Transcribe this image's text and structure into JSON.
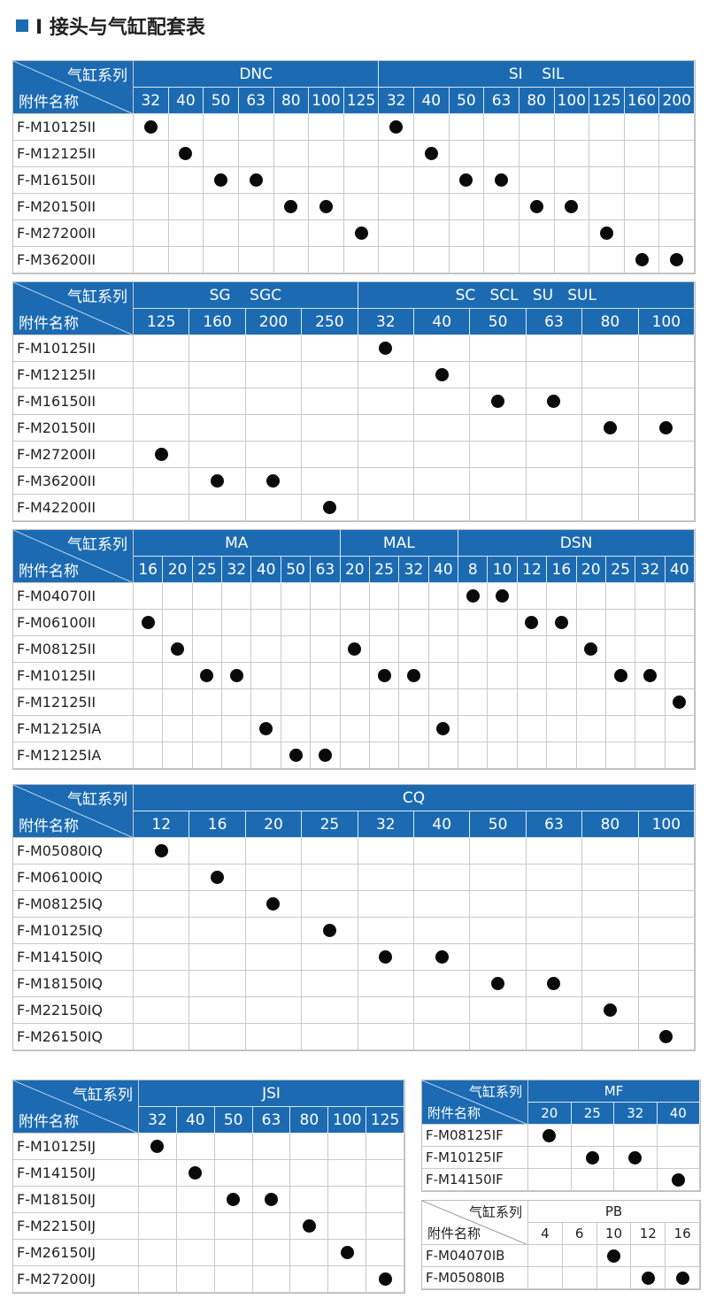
{
  "title": "I 接头与气缸配套表",
  "tables": [
    {
      "id": "t1",
      "header_top": "气缸系列",
      "header_bottom": "附件名称",
      "groups": [
        {
          "label": "DNC",
          "span": 7
        },
        {
          "label": "SI    SIL",
          "span": 9
        }
      ],
      "sizes": [
        "32",
        "40",
        "50",
        "63",
        "80",
        "100",
        "125",
        "32",
        "40",
        "50",
        "63",
        "80",
        "100",
        "125",
        "160",
        "200"
      ],
      "rows": [
        {
          "name": "F-M10125II",
          "dots": [
            0,
            7
          ]
        },
        {
          "name": "F-M12125II",
          "dots": [
            1,
            8
          ]
        },
        {
          "name": "F-M16150II",
          "dots": [
            2,
            3,
            9,
            10
          ]
        },
        {
          "name": "F-M20150II",
          "dots": [
            4,
            5,
            11,
            12
          ]
        },
        {
          "name": "F-M27200II",
          "dots": [
            6,
            13
          ]
        },
        {
          "name": "F-M36200II",
          "dots": [
            14,
            15
          ]
        }
      ]
    },
    {
      "id": "t2",
      "header_top": "气缸系列",
      "header_bottom": "附件名称",
      "groups": [
        {
          "label": "SG    SGC",
          "span": 4
        },
        {
          "label": "SC   SCL   SU   SUL",
          "span": 6
        }
      ],
      "sizes": [
        "125",
        "160",
        "200",
        "250",
        "32",
        "40",
        "50",
        "63",
        "80",
        "100"
      ],
      "rows": [
        {
          "name": "F-M10125II",
          "dots": [
            4
          ]
        },
        {
          "name": "F-M12125II",
          "dots": [
            5
          ]
        },
        {
          "name": "F-M16150II",
          "dots": [
            6,
            7
          ]
        },
        {
          "name": "F-M20150II",
          "dots": [
            8,
            9
          ]
        },
        {
          "name": "F-M27200II",
          "dots": [
            0
          ]
        },
        {
          "name": "F-M36200II",
          "dots": [
            1,
            2
          ]
        },
        {
          "name": "F-M42200II",
          "dots": [
            3
          ]
        }
      ]
    },
    {
      "id": "t3",
      "header_top": "气缸系列",
      "header_bottom": "附件名称",
      "groups": [
        {
          "label": "MA",
          "span": 7
        },
        {
          "label": "MAL",
          "span": 4
        },
        {
          "label": "DSN",
          "span": 8
        }
      ],
      "sizes": [
        "16",
        "20",
        "25",
        "32",
        "40",
        "50",
        "63",
        "20",
        "25",
        "32",
        "40",
        "8",
        "10",
        "12",
        "16",
        "20",
        "25",
        "32",
        "40"
      ],
      "rows": [
        {
          "name": "F-M04070II",
          "dots": [
            11,
            12
          ]
        },
        {
          "name": "F-M06100II",
          "dots": [
            0,
            13,
            14
          ]
        },
        {
          "name": "F-M08125II",
          "dots": [
            1,
            7,
            15
          ]
        },
        {
          "name": "F-M10125II",
          "dots": [
            2,
            3,
            8,
            9,
            16,
            17
          ]
        },
        {
          "name": "F-M12125II",
          "dots": [
            18
          ]
        },
        {
          "name": "F-M12125IA",
          "dots": [
            4,
            10
          ]
        },
        {
          "name": "F-M12125IA",
          "dots": [
            5,
            6
          ]
        }
      ]
    },
    {
      "id": "t4",
      "header_top": "气缸系列",
      "header_bottom": "附件名称",
      "groups": [
        {
          "label": "CQ",
          "span": 10
        }
      ],
      "sizes": [
        "12",
        "16",
        "20",
        "25",
        "32",
        "40",
        "50",
        "63",
        "80",
        "100"
      ],
      "rows": [
        {
          "name": "F-M05080IQ",
          "dots": [
            0
          ]
        },
        {
          "name": "F-M06100IQ",
          "dots": [
            1
          ]
        },
        {
          "name": "F-M08125IQ",
          "dots": [
            2
          ]
        },
        {
          "name": "F-M10125IQ",
          "dots": [
            3
          ]
        },
        {
          "name": "F-M14150IQ",
          "dots": [
            4,
            5
          ]
        },
        {
          "name": "F-M18150IQ",
          "dots": [
            6,
            7
          ]
        },
        {
          "name": "F-M22150IQ",
          "dots": [
            8
          ]
        },
        {
          "name": "F-M26150IQ",
          "dots": [
            9
          ]
        }
      ]
    },
    {
      "id": "t5",
      "header_top": "气缸系列",
      "header_bottom": "附件名称",
      "groups": [
        {
          "label": "JSI",
          "span": 7
        }
      ],
      "sizes": [
        "32",
        "40",
        "50",
        "63",
        "80",
        "100",
        "125"
      ],
      "rows": [
        {
          "name": "F-M10125IJ",
          "dots": [
            0
          ]
        },
        {
          "name": "F-M14150IJ",
          "dots": [
            1
          ]
        },
        {
          "name": "F-M18150IJ",
          "dots": [
            2,
            3
          ]
        },
        {
          "name": "F-M22150IJ",
          "dots": [
            4
          ]
        },
        {
          "name": "F-M26150IJ",
          "dots": [
            5
          ]
        },
        {
          "name": "F-M27200IJ",
          "dots": [
            6
          ]
        }
      ]
    },
    {
      "id": "t6",
      "header_top": "气缸系列",
      "header_bottom": "附件名称",
      "groups": [
        {
          "label": "MF",
          "span": 4
        }
      ],
      "sizes": [
        "20",
        "25",
        "32",
        "40"
      ],
      "rows": [
        {
          "name": "F-M08125IF",
          "dots": [
            0
          ]
        },
        {
          "name": "F-M10125IF",
          "dots": [
            1,
            2
          ]
        },
        {
          "name": "F-M14150IF",
          "dots": [
            3
          ]
        }
      ]
    },
    {
      "id": "t7",
      "header_top": "气缸系列",
      "header_bottom": "附件名称",
      "groups": [
        {
          "label": "PB",
          "span": 5
        }
      ],
      "sizes": [
        "4",
        "6",
        "10",
        "12",
        "16"
      ],
      "rows": [
        {
          "name": "F-M04070IB",
          "dots": [
            2
          ]
        },
        {
          "name": "F-M05080IB",
          "dots": [
            3,
            4
          ]
        }
      ]
    }
  ]
}
